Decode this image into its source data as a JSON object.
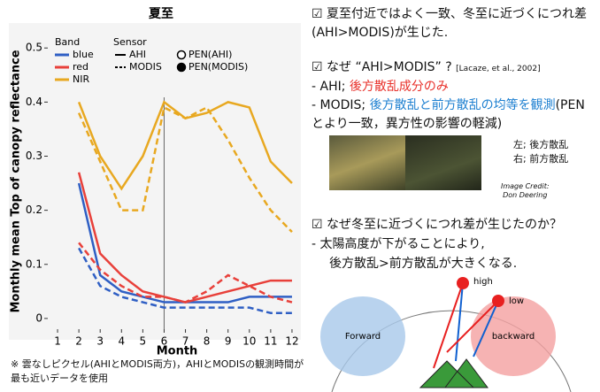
{
  "chart_data": {
    "type": "line",
    "title": "夏至",
    "xlabel": "Month",
    "ylabel": "Monthly mean Top of canopy reflectance",
    "x": [
      1,
      2,
      3,
      4,
      5,
      6,
      7,
      8,
      9,
      10,
      11,
      12
    ],
    "xlim": [
      0.5,
      12.5
    ],
    "xticks": [
      1,
      2,
      3,
      4,
      5,
      6,
      7,
      8,
      9,
      10,
      11,
      12
    ],
    "ylim": [
      -0.01,
      0.52
    ],
    "yticks": [
      0.0,
      0.1,
      0.2,
      0.3,
      0.4,
      0.5
    ],
    "series": [
      {
        "name": "blue",
        "sensor": "AHI",
        "color": "#2f5fc4",
        "dash": false,
        "values": [
          null,
          0.25,
          0.08,
          0.05,
          0.04,
          0.03,
          0.03,
          0.03,
          0.03,
          0.04,
          0.04,
          0.04
        ]
      },
      {
        "name": "red",
        "sensor": "AHI",
        "color": "#e8403a",
        "dash": false,
        "values": [
          null,
          0.27,
          0.12,
          0.08,
          0.05,
          0.04,
          0.03,
          0.04,
          0.05,
          0.06,
          0.07,
          0.07
        ]
      },
      {
        "name": "NIR",
        "sensor": "AHI",
        "color": "#e8a820",
        "dash": false,
        "values": [
          null,
          0.4,
          0.3,
          0.24,
          0.3,
          0.4,
          0.37,
          0.38,
          0.4,
          0.39,
          0.29,
          0.25
        ]
      },
      {
        "name": "blue",
        "sensor": "MODIS",
        "color": "#2f5fc4",
        "dash": true,
        "values": [
          null,
          0.13,
          0.06,
          0.04,
          0.03,
          0.02,
          0.02,
          0.02,
          0.02,
          0.02,
          0.01,
          0.01
        ]
      },
      {
        "name": "red",
        "sensor": "MODIS",
        "color": "#e8403a",
        "dash": true,
        "values": [
          null,
          0.14,
          0.09,
          0.06,
          0.04,
          0.04,
          0.03,
          0.05,
          0.08,
          0.06,
          0.04,
          0.03
        ]
      },
      {
        "name": "NIR",
        "sensor": "MODIS",
        "color": "#e8a820",
        "dash": true,
        "values": [
          null,
          0.38,
          0.29,
          0.2,
          0.2,
          0.39,
          0.37,
          0.39,
          0.33,
          0.26,
          0.2,
          0.16
        ]
      }
    ],
    "legend": {
      "band_title": "Band",
      "sensor_title": "Sensor",
      "pen": [
        "PEN(AHI)",
        "PEN(MODIS)"
      ]
    },
    "footnote": "※ 雲なしピクセル(AHIとMODIS両方)，AHIとMODISの観測時間が最も近いデータを使用"
  },
  "text": {
    "s1": "☑ 夏至付近ではよく一致、冬至に近づくにつれ差(AHI>MODIS)が生じた.",
    "s2": "☑ なぜ “AHI>MODIS” ?",
    "s2_ref": "[Lacaze, et al., 2002]",
    "ahi_pre": "- AHI; ",
    "ahi_red": "後方散乱成分のみ",
    "modis_pre": "- MODIS; ",
    "modis_blue": "後方散乱と前方散乱の均等を観測",
    "modis_post": "(PENとより一致，異方性の影響の軽減)",
    "cap_left": "左; 後方散乱",
    "cap_right": "右; 前方散乱",
    "credit1": "Image Credit:",
    "credit2": "Don Deering",
    "s3": "☑ なぜ冬至に近づくにつれ差が生じたのか？",
    "s3_a": "- 太陽高度が下がることにより,",
    "s3_b": "後方散乱>前方散乱が大きくなる.",
    "forward": "Forward",
    "backward": "backward",
    "high": "high",
    "low": "low"
  }
}
